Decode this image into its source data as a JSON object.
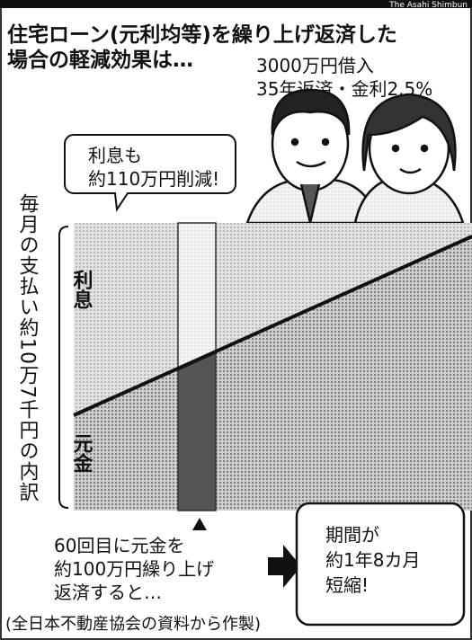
{
  "header": {
    "credit": "The Asahi Shimbun",
    "title_lines": [
      "住宅ローン(元利均等)を繰り上げ返済した",
      "場合の軽減効果は…"
    ]
  },
  "conditions": [
    "3000万円借入",
    "35年返済・金利2.5%"
  ],
  "bubble": [
    "利息も",
    "約110万円削減!"
  ],
  "diagram": {
    "axis_label": "毎月の支払い約10万7千円の内訳",
    "upper_label": "利息",
    "lower_label": "元金"
  },
  "note": [
    "60回目に元金を",
    "約100万円繰り上げ",
    "返済すると…"
  ],
  "result": [
    "期間が",
    "約1年8カ月",
    "短縮!"
  ],
  "source": "(全日本不動産協会の資料から作製)"
}
